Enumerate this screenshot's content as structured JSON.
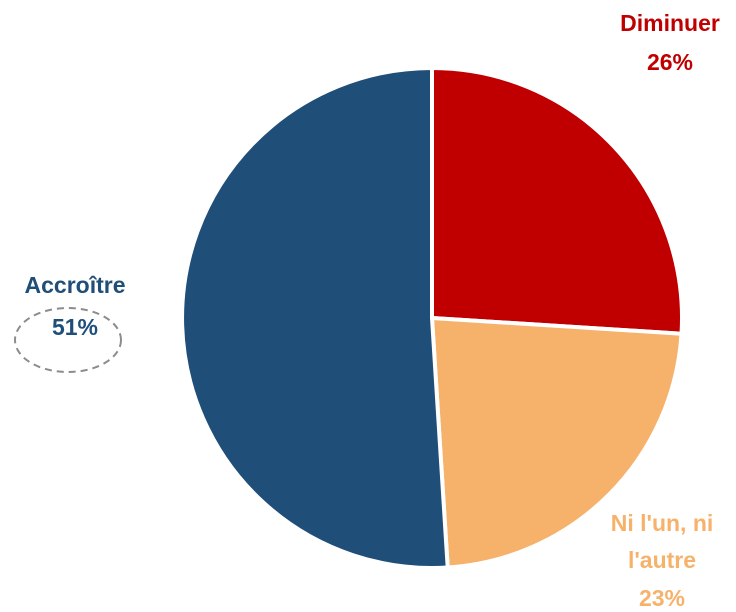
{
  "chart_data": {
    "type": "pie",
    "title": "",
    "slices": [
      {
        "label": "Diminuer",
        "value": 26,
        "value_label": "26%",
        "color": "#C00000",
        "label_color": "#C00000"
      },
      {
        "label": "Ni l'un, ni l'autre",
        "value": 23,
        "value_label": "23%",
        "color": "#F6B26B",
        "label_color": "#F6B26B"
      },
      {
        "label": "Accroître",
        "value": 51,
        "value_label": "51%",
        "color": "#1F4E79",
        "label_color": "#1F4E79"
      }
    ],
    "start_angle_deg": 0,
    "direction": "clockwise",
    "legend": "none",
    "labels": "outside, category name and percentage",
    "slice_border_color": "#ffffff"
  }
}
